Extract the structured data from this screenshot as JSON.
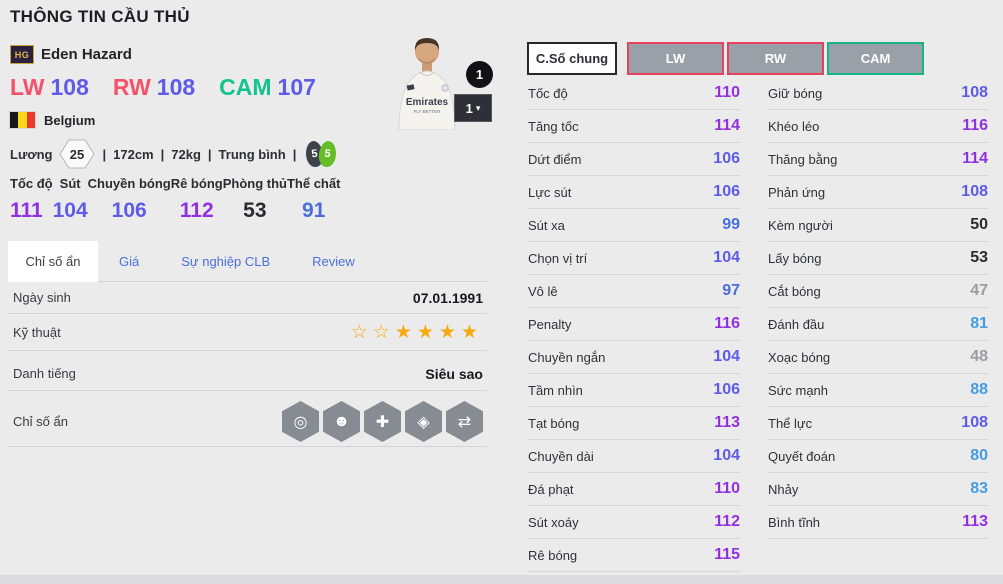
{
  "page": {
    "title": "THÔNG TIN CẦU THỦ"
  },
  "colors": {
    "tier_purple": "#9130e0",
    "tier_indigo": "#5d5be8",
    "tier_blue": "#4a6edb",
    "tier_lightblue": "#459ce2",
    "tier_dark": "#2b2b33",
    "tier_gray": "#9b9ba3",
    "pos_red": "#e8415e",
    "pos_green": "#17b583",
    "tab_link_blue": "#4a6fdc",
    "star_gold": "#f7a912",
    "flag_black": "#17181c",
    "flag_yellow": "#f7d917",
    "flag_red": "#e8392d"
  },
  "player": {
    "badge": "HG",
    "name": "Eden Hazard",
    "nation": "Belgium",
    "salary_label": "Lương",
    "salary": "25",
    "sep": "|",
    "height": "172cm",
    "weight": "72kg",
    "body_type": "Trung bình",
    "weak_foot_left": "5",
    "weak_foot_right": "5",
    "level_badge": "1",
    "level_select": "1",
    "jersey_sponsor": "Emirates",
    "jersey_sponsor_sub": "FLY BETTER",
    "positions": [
      {
        "label": "LW",
        "value": "108",
        "label_color": "#f4526a",
        "value_color": "#5d5be8"
      },
      {
        "label": "RW",
        "value": "108",
        "label_color": "#f4526a",
        "value_color": "#5d5be8"
      },
      {
        "label": "CAM",
        "value": "107",
        "label_color": "#12c28f",
        "value_color": "#5d5be8"
      }
    ]
  },
  "summary_stats": [
    {
      "label": "Tốc độ",
      "value": "111",
      "color": "#9130e0"
    },
    {
      "label": "Sút",
      "value": "104",
      "color": "#5d5be8"
    },
    {
      "label": "Chuyền bóng",
      "value": "106",
      "color": "#5d5be8"
    },
    {
      "label": "Rê bóng",
      "value": "112",
      "color": "#9130e0"
    },
    {
      "label": "Phòng thủ",
      "value": "53",
      "color": "#2b2b33"
    },
    {
      "label": "Thể chất",
      "value": "91",
      "color": "#4a6edb"
    }
  ],
  "tabs": [
    {
      "label": "Chỉ số ẩn"
    },
    {
      "label": "Giá"
    },
    {
      "label": "Sự nghiệp CLB"
    },
    {
      "label": "Review"
    }
  ],
  "info": {
    "dob_label": "Ngày sinh",
    "dob_value": "07.01.1991",
    "skill_label": "Kỹ thuật",
    "fame_label": "Danh tiếng",
    "fame_value": "Siêu sao",
    "hidden_label": "Chỉ số ẩn"
  },
  "icons": {
    "caret_down": "▾",
    "stars": [
      "☆",
      "☆",
      "★",
      "★",
      "★",
      "★"
    ],
    "hidden_glyphs": [
      "◎",
      "☻",
      "✚",
      "◈",
      "⇄"
    ]
  },
  "stat_buttons": [
    {
      "label": "C.Số chung"
    },
    {
      "label": "LW"
    },
    {
      "label": "RW"
    },
    {
      "label": "CAM"
    }
  ],
  "detail_left": [
    {
      "label": "Tốc độ",
      "value": "110",
      "color": "#9130e0"
    },
    {
      "label": "Tăng tốc",
      "value": "114",
      "color": "#9130e0"
    },
    {
      "label": "Dứt điểm",
      "value": "106",
      "color": "#5d5be8"
    },
    {
      "label": "Lực sút",
      "value": "106",
      "color": "#5d5be8"
    },
    {
      "label": "Sút xa",
      "value": "99",
      "color": "#4a6edb"
    },
    {
      "label": "Chọn vị trí",
      "value": "104",
      "color": "#5d5be8"
    },
    {
      "label": "Vô lê",
      "value": "97",
      "color": "#4a6edb"
    },
    {
      "label": "Penalty",
      "value": "116",
      "color": "#9130e0"
    },
    {
      "label": "Chuyền ngắn",
      "value": "104",
      "color": "#5d5be8"
    },
    {
      "label": "Tầm nhìn",
      "value": "106",
      "color": "#5d5be8"
    },
    {
      "label": "Tạt bóng",
      "value": "113",
      "color": "#9130e0"
    },
    {
      "label": "Chuyền dài",
      "value": "104",
      "color": "#5d5be8"
    },
    {
      "label": "Đá phạt",
      "value": "110",
      "color": "#9130e0"
    },
    {
      "label": "Sút xoáy",
      "value": "112",
      "color": "#9130e0"
    },
    {
      "label": "Rê bóng",
      "value": "115",
      "color": "#9130e0"
    }
  ],
  "detail_right": [
    {
      "label": "Giữ bóng",
      "value": "108",
      "color": "#5d5be8"
    },
    {
      "label": "Khéo léo",
      "value": "116",
      "color": "#9130e0"
    },
    {
      "label": "Thăng bằng",
      "value": "114",
      "color": "#9130e0"
    },
    {
      "label": "Phản ứng",
      "value": "108",
      "color": "#5d5be8"
    },
    {
      "label": "Kèm người",
      "value": "50",
      "color": "#2b2b33"
    },
    {
      "label": "Lấy bóng",
      "value": "53",
      "color": "#2b2b33"
    },
    {
      "label": "Cắt bóng",
      "value": "47",
      "color": "#9b9ba3"
    },
    {
      "label": "Đánh đầu",
      "value": "81",
      "color": "#459ce2"
    },
    {
      "label": "Xoạc bóng",
      "value": "48",
      "color": "#9b9ba3"
    },
    {
      "label": "Sức mạnh",
      "value": "88",
      "color": "#459ce2"
    },
    {
      "label": "Thể lực",
      "value": "108",
      "color": "#5d5be8"
    },
    {
      "label": "Quyết đoán",
      "value": "80",
      "color": "#459ce2"
    },
    {
      "label": "Nhảy",
      "value": "83",
      "color": "#459ce2"
    },
    {
      "label": "Bình tĩnh",
      "value": "113",
      "color": "#9130e0"
    }
  ]
}
